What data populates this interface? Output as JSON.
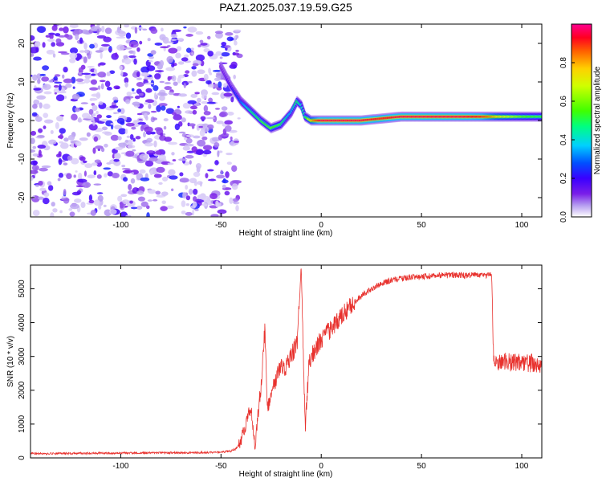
{
  "figure_title": "PAZ1.2025.037.19.59.G25",
  "chart_data": [
    {
      "type": "heatmap",
      "title": "PAZ1.2025.037.19.59.G25",
      "xlabel": "Height of straight line (km)",
      "ylabel": "Frequency (Hz)",
      "xlim": [
        -145,
        110
      ],
      "ylim": [
        -25,
        25
      ],
      "x_ticks": [
        -100,
        -50,
        0,
        50,
        100
      ],
      "y_ticks": [
        -20,
        -10,
        0,
        10,
        20
      ],
      "colorbar": {
        "label": "Normalized spectral amplitude",
        "range": [
          0,
          1
        ],
        "ticks": [
          0.0,
          0.2,
          0.4,
          0.6,
          0.8
        ],
        "tick_labels": [
          "0.0",
          "0.2",
          "0.4",
          "0.6",
          "0.8"
        ],
        "colors": [
          "#ffffff",
          "#b59cf0",
          "#7a1ee8",
          "#3a00ff",
          "#0050ff",
          "#00d0ff",
          "#00ff80",
          "#40ff00",
          "#d0ff00",
          "#ffd000",
          "#ff6000",
          "#ff0020",
          "#ff0090"
        ]
      },
      "noise_region_x": [
        -145,
        -43
      ],
      "signal_ridge": {
        "x": [
          -50,
          -45,
          -40,
          -35,
          -30,
          -25,
          -20,
          -15,
          -12,
          -10,
          -8,
          -5,
          0,
          10,
          20,
          30,
          40,
          50,
          60,
          70,
          80,
          90,
          100,
          110
        ],
        "y": [
          14,
          9,
          5,
          2.5,
          0,
          -2,
          -1,
          2,
          5,
          4,
          1,
          0,
          0,
          0,
          0,
          0.5,
          1,
          1,
          1,
          1,
          1,
          1,
          1,
          1
        ],
        "amplitude": [
          0.15,
          0.25,
          0.35,
          0.5,
          0.55,
          0.6,
          0.55,
          0.4,
          0.55,
          0.45,
          0.5,
          0.75,
          0.95,
          0.95,
          0.95,
          0.9,
          0.95,
          0.95,
          0.95,
          0.95,
          0.9,
          0.7,
          0.6,
          0.55
        ]
      }
    },
    {
      "type": "line",
      "xlabel": "Height of straight line (km)",
      "ylabel": "SNR (10 * v/v)",
      "xlim": [
        -145,
        110
      ],
      "ylim": [
        0,
        5700
      ],
      "x_ticks": [
        -100,
        -50,
        0,
        50,
        100
      ],
      "y_ticks": [
        0,
        1000,
        2000,
        3000,
        4000,
        5000
      ],
      "color": "#e8322e",
      "series": [
        {
          "x": [
            -145,
            -130,
            -115,
            -100,
            -85,
            -70,
            -55,
            -50,
            -45,
            -42,
            -40,
            -38,
            -35,
            -33,
            -30,
            -28,
            -27,
            -25,
            -23,
            -20,
            -18,
            -15,
            -12,
            -10,
            -8,
            -6,
            -4,
            -2,
            0,
            3,
            6,
            10,
            15,
            20,
            25,
            30,
            35,
            40,
            45,
            50,
            55,
            60,
            65,
            70,
            75,
            80,
            85,
            86,
            90,
            95,
            100,
            105,
            110
          ],
          "y": [
            130,
            130,
            140,
            140,
            150,
            150,
            160,
            170,
            200,
            300,
            550,
            900,
            1500,
            400,
            2200,
            3900,
            1500,
            1800,
            2300,
            2700,
            2600,
            3000,
            3400,
            5650,
            900,
            2900,
            3100,
            3300,
            3500,
            3700,
            3900,
            4200,
            4500,
            4800,
            5000,
            5150,
            5250,
            5300,
            5350,
            5350,
            5380,
            5400,
            5400,
            5400,
            5400,
            5400,
            5400,
            2850,
            2850,
            2800,
            2850,
            2800,
            2700
          ]
        }
      ]
    }
  ]
}
